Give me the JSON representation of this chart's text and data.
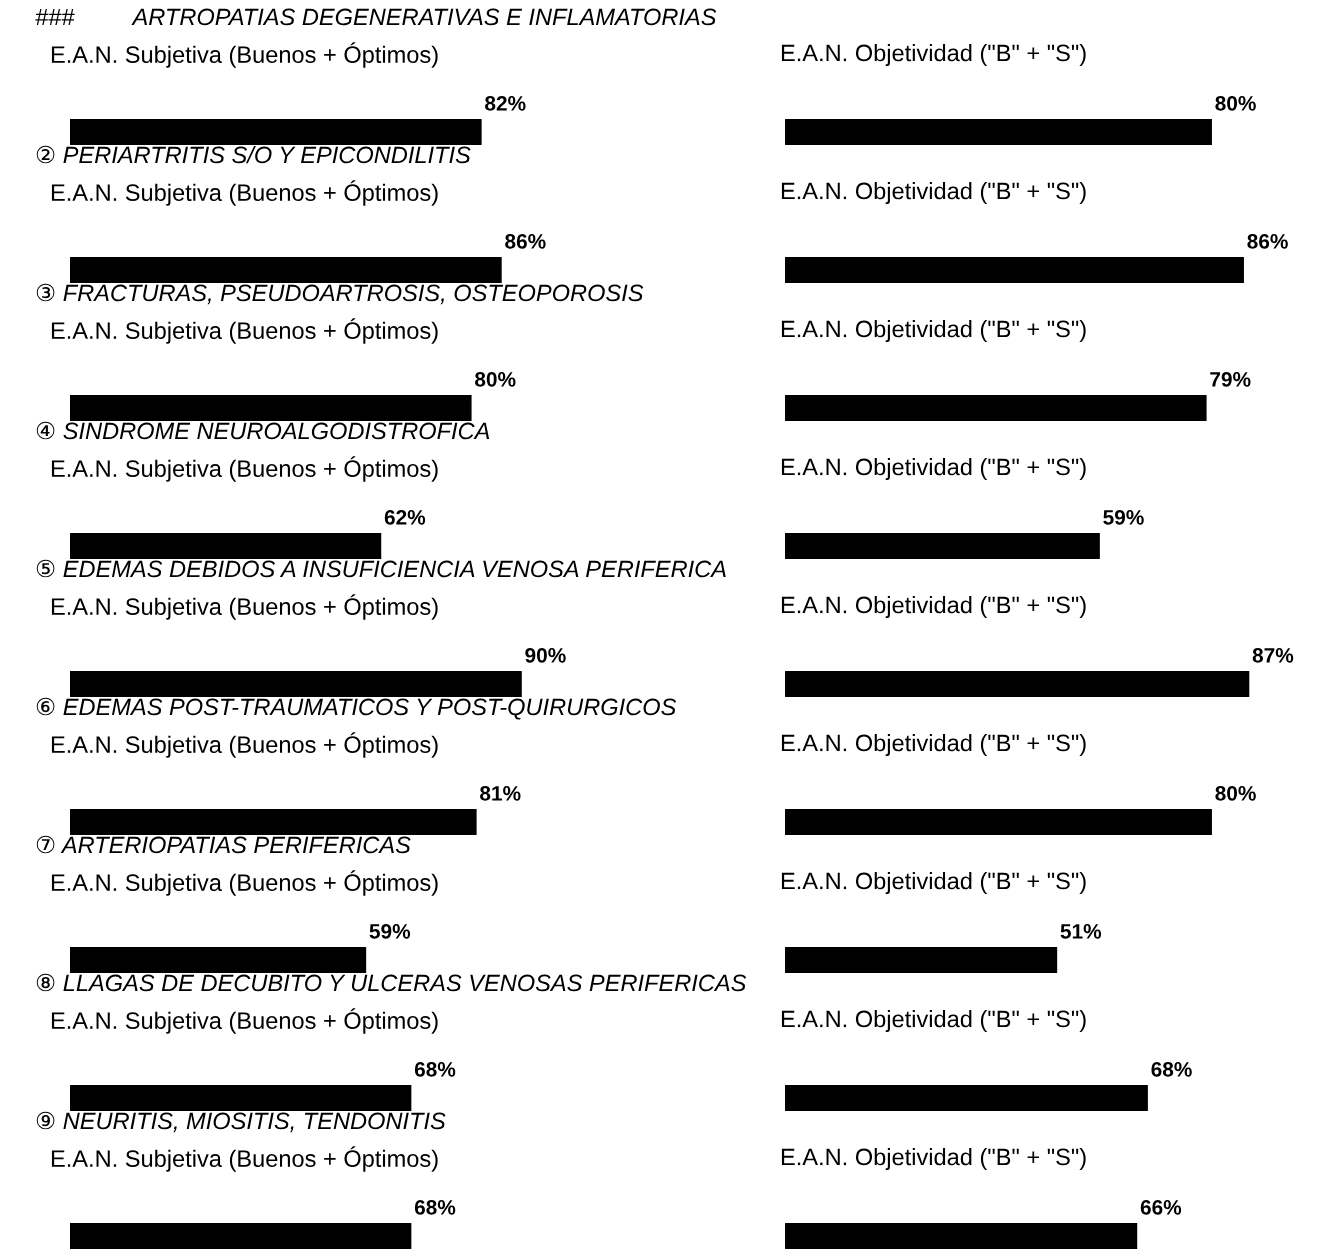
{
  "chart_data": [
    {
      "type": "bar",
      "orientation": "horizontal",
      "categories": [
        null,
        null,
        null,
        null,
        null,
        null,
        null,
        null,
        null
      ],
      "values": [
        82,
        86,
        80,
        62,
        90,
        81,
        59,
        68,
        68
      ],
      "value_labels": [
        "82%",
        "86%",
        "80%",
        "62%",
        "90%",
        "81%",
        "59%",
        "68%",
        "68%"
      ],
      "color": "#000000",
      "tick_labels": false,
      "annotations": [
        "###         ARTROPATIAS DEGENERATIVAS E INFLAMATORIAS",
        "E.A.N. Subjetiva (Buenos + Óptimos)",
        "② PERIARTRITIS S/O Y EPICONDILITIS",
        "E.A.N. Subjetiva (Buenos + Óptimos)",
        "③ FRACTURAS, PSEUDOARTROSIS, OSTEOPOROSIS",
        "E.A.N. Subjetiva (Buenos + Óptimos)",
        "④ SINDROME NEUROALGODISTROFICA",
        "E.A.N. Subjetiva (Buenos + Óptimos)",
        "⑤ EDEMAS DEBIDOS A INSUFICIENCIA VENOSA PERIFERICA",
        "E.A.N. Subjetiva (Buenos + Óptimos)",
        "⑥ EDEMAS POST-TRAUMATICOS Y POST-QUIRURGICOS",
        "E.A.N. Subjetiva (Buenos + Óptimos)",
        "⑦ ARTERIOPATIAS PERIFERICAS",
        "E.A.N. Subjetiva (Buenos + Óptimos)",
        "⑧ LLAGAS DE DECUBITO Y ULCERAS VENOSAS PERIFERICAS",
        "E.A.N. Subjetiva (Buenos + Óptimos)",
        "⑨ NEURITIS, MIOSITIS, TENDONITIS",
        "E.A.N. Subjetiva (Buenos + Óptimos)"
      ]
    },
    {
      "type": "bar",
      "orientation": "horizontal",
      "categories": [
        null,
        null,
        null,
        null,
        null,
        null,
        null,
        null,
        null
      ],
      "values": [
        80,
        86,
        79,
        59,
        87,
        80,
        51,
        68,
        66
      ],
      "value_labels": [
        "80%",
        "86%",
        "79%",
        "59%",
        "87%",
        "80%",
        "51%",
        "68%",
        "66%"
      ],
      "color": "#000000",
      "tick_labels": false,
      "annotations": [
        "E.A.N. Objetividad (\"B\" + \"S\")",
        "E.A.N. Objetividad (\"B\" + \"S\")",
        "E.A.N. Objetividad (\"B\" + \"S\")",
        "E.A.N. Objetividad (\"B\" + \"S\")",
        "E.A.N. Objetividad (\"B\" + \"S\")",
        "E.A.N. Objetividad (\"B\" + \"S\")",
        "E.A.N. Objetividad (\"B\" + \"S\")",
        "E.A.N. Objetividad (\"B\" + \"S\")",
        "E.A.N. Objetividad (\"B\" + \"S\")"
      ]
    }
  ]
}
